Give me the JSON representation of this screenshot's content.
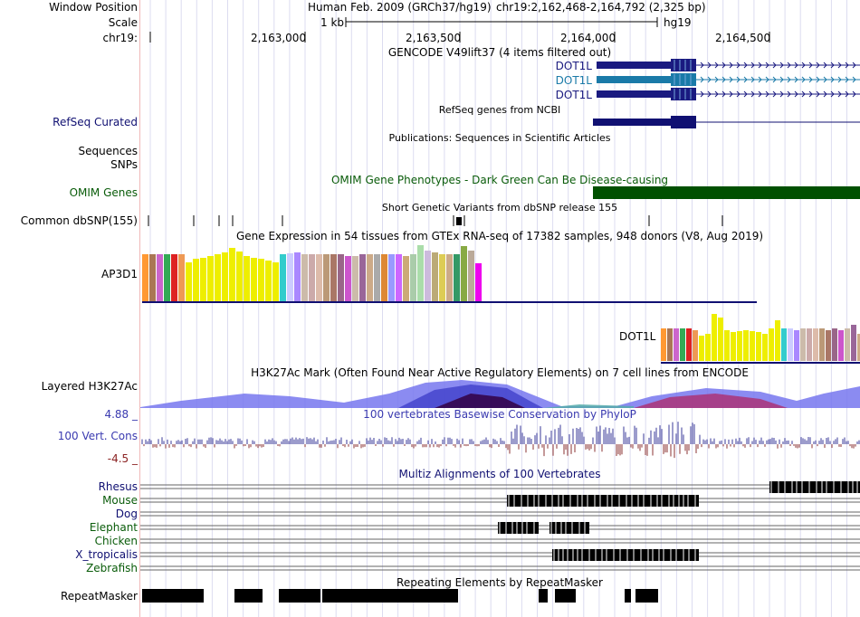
{
  "header": {
    "window_position_label": "Window Position",
    "scale_label": "Scale",
    "chrom_label": "chr19:",
    "assembly": "Human Feb. 2009 (GRCh37/hg19)",
    "position": "chr19:2,162,468-2,164,792 (2,325 bp)",
    "scale_value": "1 kb",
    "scale_db": "hg19",
    "ruler_ticks": [
      "2,163,000",
      "2,163,500",
      "2,164,000",
      "2,164,500"
    ]
  },
  "tracks": {
    "gencode": {
      "title": "GENCODE V49lift37 (4 items filtered out)",
      "items": [
        {
          "name": "DOT1L",
          "color": "#1a1a80"
        },
        {
          "name": "DOT1L",
          "color": "#1a7aa8"
        },
        {
          "name": "DOT1L",
          "color": "#1a1a80"
        }
      ]
    },
    "refseq": {
      "label": "RefSeq Curated",
      "title": "RefSeq genes from NCBI"
    },
    "publications": {
      "title": "Publications: Sequences in Scientific Articles"
    },
    "sequences": {
      "label": "Sequences"
    },
    "snps": {
      "label": "SNPs"
    },
    "omim": {
      "label": "OMIM Genes",
      "title": "OMIM Gene Phenotypes - Dark Green Can Be Disease-causing",
      "color": "#005000"
    },
    "dbsnp": {
      "label": "Common dbSNP(155)",
      "title": "Short Genetic Variants from dbSNP release 155"
    },
    "gtex": {
      "title": "Gene Expression in 54 tissues from GTEx RNA-seq of 17382 samples, 948 donors (V8, Aug 2019)",
      "gene1": "AP3D1",
      "gene2": "DOT1L",
      "colors": [
        "#ff9933",
        "#aa7755",
        "#cc66cc",
        "#33aa55",
        "#dd2222",
        "#ee9955",
        "#eeee00",
        "#eeee00",
        "#eeee00",
        "#eeee00",
        "#eeee00",
        "#eeee00",
        "#eeee00",
        "#eeee00",
        "#eeee00",
        "#eeee00",
        "#eeee00",
        "#eeee00",
        "#eeee00",
        "#33cccc",
        "#ccccff",
        "#aa88ff",
        "#ccbbaa",
        "#ccaaaa",
        "#ddbbaa",
        "#bb9977",
        "#aa7766",
        "#996688",
        "#cc55cc",
        "#ccbbaa",
        "#996699",
        "#ccaa88",
        "#aaaaaa",
        "#dd8833",
        "#9999ff",
        "#cc66ff",
        "#ccaa77",
        "#aaccaa",
        "#aaddaa",
        "#ccbbdd",
        "#bbaa77",
        "#ddcc55",
        "#ccaa88",
        "#339966",
        "#88aa44",
        "#bbaa99",
        "#ee00ee"
      ],
      "values1": [
        0.84,
        0.84,
        0.84,
        0.84,
        0.84,
        0.84,
        0.7,
        0.75,
        0.78,
        0.8,
        0.84,
        0.87,
        0.95,
        0.88,
        0.8,
        0.78,
        0.75,
        0.73,
        0.7,
        0.84,
        0.86,
        0.87,
        0.84,
        0.84,
        0.84,
        0.84,
        0.84,
        0.84,
        0.8,
        0.8,
        0.84,
        0.84,
        0.84,
        0.84,
        0.84,
        0.84,
        0.8,
        0.84,
        1.0,
        0.9,
        0.87,
        0.84,
        0.84,
        0.84,
        0.98,
        0.9,
        0.67
      ],
      "values2": [
        0.65,
        0.65,
        0.65,
        0.65,
        0.65,
        0.62,
        0.5,
        0.55,
        0.95,
        0.88,
        0.62,
        0.58,
        0.6,
        0.62,
        0.6,
        0.58,
        0.55,
        0.65,
        0.82,
        0.65,
        0.65,
        0.62,
        0.65,
        0.65,
        0.65,
        0.65,
        0.62,
        0.65,
        0.62,
        0.65,
        0.72,
        0.55
      ]
    },
    "h3k27ac": {
      "label": "Layered H3K27Ac",
      "title": "H3K27Ac Mark (Often Found Near Active Regulatory Elements) on 7 cell lines from ENCODE"
    },
    "phylop": {
      "label": "100 Vert. Cons",
      "max": "4.88 _",
      "min": "-4.5 _",
      "title": "100 vertebrates Basewise Conservation by PhyloP"
    },
    "multiz": {
      "title": "Multiz Alignments of 100 Vertebrates",
      "species": [
        {
          "name": "Rhesus",
          "color": "#101072"
        },
        {
          "name": "Mouse",
          "color": "#0a5c0a"
        },
        {
          "name": "Dog",
          "color": "#101072"
        },
        {
          "name": "Elephant",
          "color": "#0a5c0a"
        },
        {
          "name": "Chicken",
          "color": "#0a5c0a"
        },
        {
          "name": "X_tropicalis",
          "color": "#101072"
        },
        {
          "name": "Zebrafish",
          "color": "#0a5c0a"
        }
      ]
    },
    "repeatmasker": {
      "label": "RepeatMasker",
      "title": "Repeating Elements by RepeatMasker"
    }
  }
}
